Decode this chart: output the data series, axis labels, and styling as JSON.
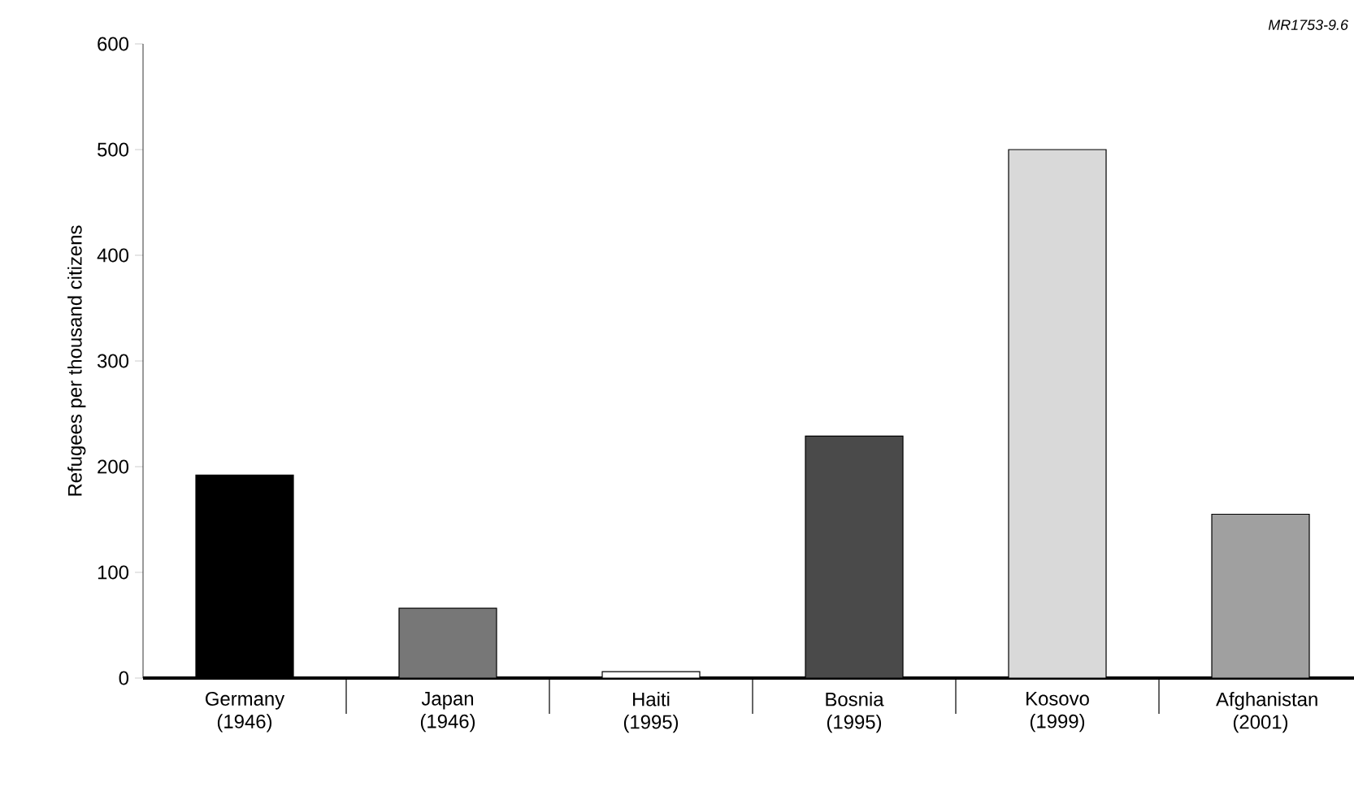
{
  "chart_data": {
    "type": "bar",
    "ylabel": "Refugees per thousand citizens",
    "categories": [
      "Germany (1946)",
      "Japan (1946)",
      "Haiti (1995)",
      "Bosnia (1995)",
      "Kosovo (1999)",
      "Afghanistan (2001)"
    ],
    "values": [
      192,
      66,
      6,
      229,
      500,
      155
    ],
    "colors": [
      "#000000",
      "#777777",
      "#ffffff",
      "#4a4a4a",
      "#d9d9d9",
      "#a0a0a0"
    ],
    "ylim": [
      0,
      600
    ],
    "yticks": [
      0,
      100,
      200,
      300,
      400,
      500,
      600
    ],
    "grid": false,
    "annotations": [
      "*MR1753-9.6*"
    ]
  }
}
